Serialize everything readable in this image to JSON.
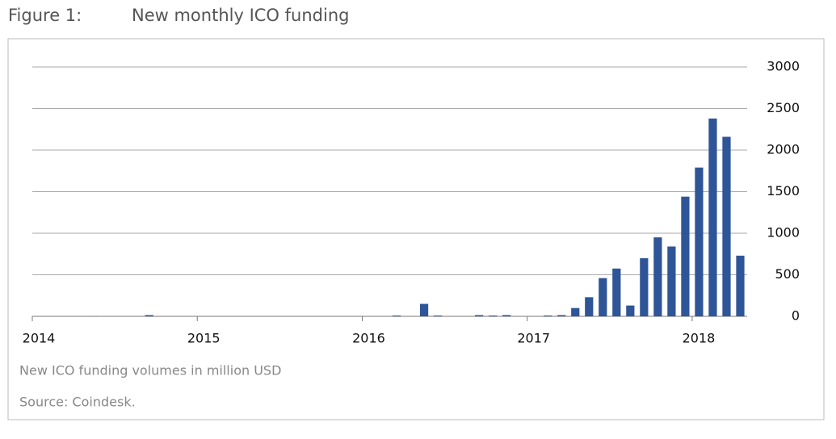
{
  "chart_data": {
    "type": "bar",
    "figure_label": "Figure 1:",
    "title": "New monthly ICO funding",
    "caption": "New ICO funding volumes in million USD",
    "source": "Source: Coindesk.",
    "color": "#2e5597",
    "categories": [
      "2014",
      null,
      null,
      null,
      null,
      null,
      null,
      null,
      null,
      null,
      null,
      null,
      "2015",
      null,
      null,
      null,
      null,
      null,
      null,
      null,
      null,
      null,
      null,
      null,
      "2016",
      null,
      null,
      null,
      null,
      null,
      null,
      null,
      null,
      null,
      null,
      null,
      "2017",
      null,
      null,
      null,
      null,
      null,
      null,
      null,
      null,
      null,
      null,
      null,
      "2018",
      null,
      null,
      null
    ],
    "values": [
      0,
      0,
      0,
      0,
      2,
      0,
      0,
      0,
      15,
      0,
      0,
      0,
      0,
      0,
      0,
      0,
      0,
      0,
      0,
      0,
      0,
      0,
      0,
      0,
      0,
      0,
      10,
      0,
      150,
      10,
      0,
      0,
      15,
      10,
      15,
      0,
      0,
      10,
      15,
      100,
      230,
      460,
      575,
      130,
      700,
      950,
      840,
      1440,
      1790,
      2380,
      2160,
      730
    ],
    "ylim": [
      0,
      3000
    ],
    "yticks": [
      0,
      500,
      1000,
      1500,
      2000,
      2500,
      3000
    ],
    "grid": true
  }
}
